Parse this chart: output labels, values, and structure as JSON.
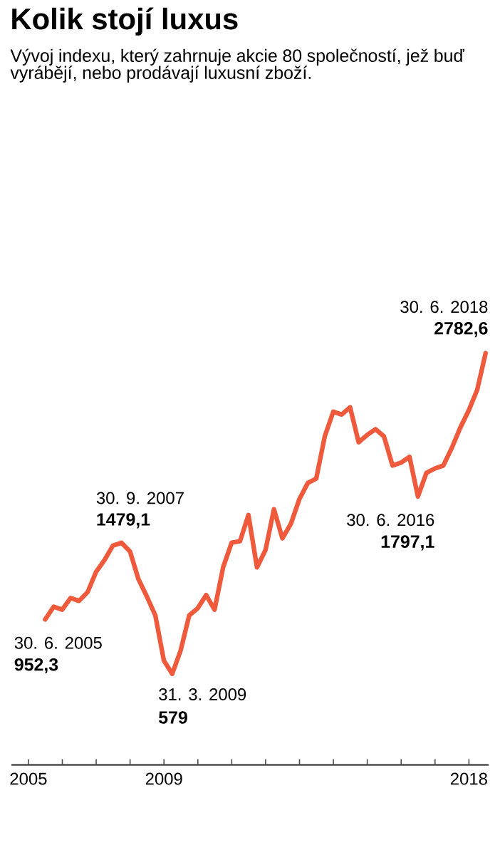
{
  "chart_data": {
    "type": "line",
    "title": "Kolik stojí luxus",
    "subtitle": "Vývoj indexu, který zahrnuje akcie 80 společností, jež buď vyrábějí, nebo prodávají luxusní zboží.",
    "color": "#f05a3c",
    "x": [
      "2005-06-30",
      "2005-09-30",
      "2005-12-31",
      "2006-03-31",
      "2006-06-30",
      "2006-09-30",
      "2006-12-31",
      "2007-03-31",
      "2007-06-30",
      "2007-09-30",
      "2007-12-31",
      "2008-03-31",
      "2008-06-30",
      "2008-09-30",
      "2008-12-31",
      "2009-03-31",
      "2009-06-30",
      "2009-09-30",
      "2009-12-31",
      "2010-03-31",
      "2010-06-30",
      "2010-09-30",
      "2010-12-31",
      "2011-03-31",
      "2011-06-30",
      "2011-09-30",
      "2011-12-31",
      "2012-03-31",
      "2012-06-30",
      "2012-09-30",
      "2012-12-31",
      "2013-03-31",
      "2013-06-30",
      "2013-09-30",
      "2013-12-31",
      "2014-03-31",
      "2014-06-30",
      "2014-09-30",
      "2014-12-31",
      "2015-03-31",
      "2015-06-30",
      "2015-09-30",
      "2015-12-31",
      "2016-03-31",
      "2016-06-30",
      "2016-09-30",
      "2016-12-31",
      "2017-03-31",
      "2017-06-30",
      "2017-09-30",
      "2017-12-31",
      "2018-03-31",
      "2018-06-30"
    ],
    "values": [
      952.3,
      1040,
      1020,
      1100,
      1080,
      1140,
      1280,
      1360,
      1460,
      1479.1,
      1420,
      1230,
      1110,
      980,
      670,
      579,
      740,
      980,
      1030,
      1120,
      1020,
      1310,
      1480,
      1490,
      1670,
      1310,
      1430,
      1710,
      1510,
      1610,
      1780,
      1890,
      1920,
      2210,
      2380,
      2360,
      2410,
      2170,
      2220,
      2260,
      2210,
      2010,
      2030,
      2070,
      1797.1,
      1960,
      1990,
      2010,
      2130,
      2270,
      2390,
      2530,
      2782.6
    ],
    "value_labels": [
      "952,3",
      null,
      null,
      null,
      null,
      null,
      null,
      null,
      null,
      "1479,1",
      null,
      null,
      null,
      null,
      null,
      "579",
      null,
      null,
      null,
      null,
      null,
      null,
      null,
      null,
      null,
      null,
      null,
      null,
      null,
      null,
      null,
      null,
      null,
      null,
      null,
      null,
      null,
      null,
      null,
      null,
      null,
      null,
      null,
      null,
      "1797,1",
      null,
      null,
      null,
      null,
      null,
      null,
      null,
      "2782,6"
    ],
    "annotations": [
      {
        "text": "30. 6. 2005",
        "x": "2005-06-30",
        "y": 952.3
      },
      {
        "text": "30. 9. 2007",
        "x": "2007-09-30",
        "y": 1479.1
      },
      {
        "text": "31. 3. 2009",
        "x": "2009-03-31",
        "y": 579
      },
      {
        "text": "30. 6. 2016",
        "x": "2016-06-30",
        "y": 1797.1
      },
      {
        "text": "30. 6. 2018",
        "x": "2018-06-30",
        "y": 2782.6
      }
    ],
    "xlim": [
      "2004-07-01",
      "2018-08-01"
    ],
    "xticks": [
      "2005",
      {
        "value": "2006",
        "label": null
      },
      {
        "value": "2007",
        "label": null
      },
      {
        "value": "2008",
        "label": null
      },
      "2009",
      {
        "value": "2010",
        "label": null
      },
      {
        "value": "2011",
        "label": null
      },
      {
        "value": "2012",
        "label": null
      },
      {
        "value": "2013",
        "label": null
      },
      {
        "value": "2014",
        "label": null
      },
      {
        "value": "2015",
        "label": null
      },
      {
        "value": "2016",
        "label": null
      },
      {
        "value": "2017",
        "label": null
      },
      "2018"
    ]
  }
}
